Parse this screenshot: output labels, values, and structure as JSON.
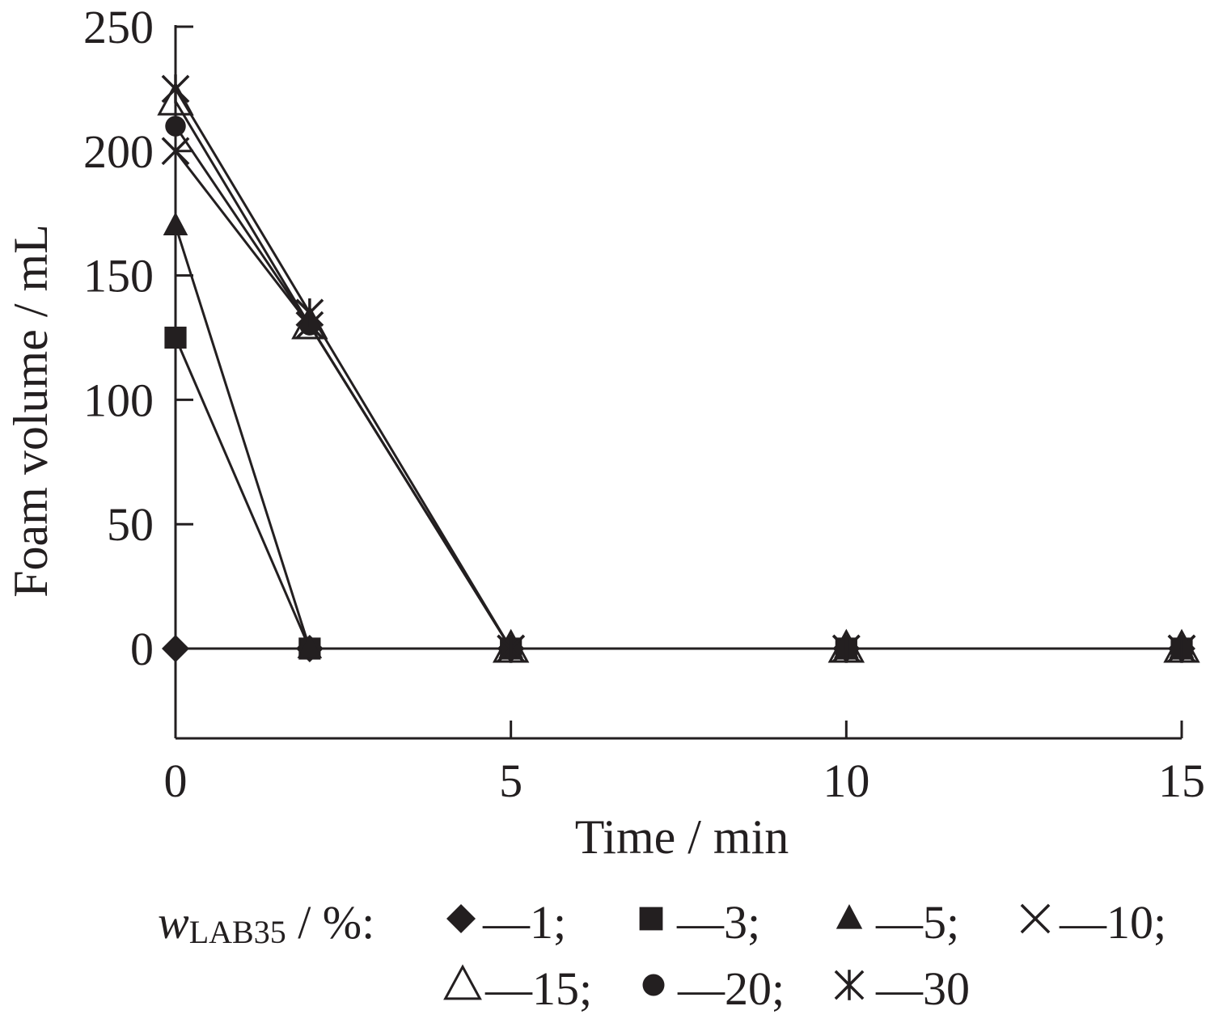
{
  "chart_data": {
    "type": "line",
    "xlabel": "Time / min",
    "ylabel": "Foam volume / mL",
    "xlim": [
      0,
      15
    ],
    "ylim": [
      -37,
      250
    ],
    "x_ticks": [
      "0",
      "5",
      "10",
      "15"
    ],
    "y_ticks": [
      "250",
      "200",
      "150",
      "100",
      "50",
      "0"
    ],
    "grid": false,
    "legend": {
      "position": "bottom",
      "prefix_var": "w",
      "prefix_sub": "LAB35",
      "prefix_unit": " / %:",
      "entries": [
        "—1;",
        "—3;",
        "—5;",
        "—10;",
        "—15;",
        "—20;",
        "—30"
      ]
    },
    "series": [
      {
        "name": "1",
        "marker": "diamond",
        "x": [
          0,
          2,
          5,
          10,
          15
        ],
        "y": [
          0,
          0,
          0,
          0,
          0
        ]
      },
      {
        "name": "3",
        "marker": "square",
        "x": [
          0,
          2,
          5,
          10,
          15
        ],
        "y": [
          125,
          0,
          0,
          0,
          0
        ]
      },
      {
        "name": "5",
        "marker": "triangle",
        "x": [
          0,
          2,
          5,
          10,
          15
        ],
        "y": [
          170,
          0,
          0,
          0,
          0
        ]
      },
      {
        "name": "10",
        "marker": "x",
        "x": [
          0,
          2,
          5,
          10,
          15
        ],
        "y": [
          200,
          130,
          0,
          0,
          0
        ]
      },
      {
        "name": "15",
        "marker": "triangle-open",
        "x": [
          0,
          2,
          5,
          10,
          15
        ],
        "y": [
          220,
          130,
          0,
          0,
          0
        ]
      },
      {
        "name": "20",
        "marker": "circle",
        "x": [
          0,
          2,
          5,
          10,
          15
        ],
        "y": [
          210,
          130,
          0,
          0,
          0
        ]
      },
      {
        "name": "30",
        "marker": "asterisk",
        "x": [
          0,
          2,
          5,
          10,
          15
        ],
        "y": [
          225,
          135,
          0,
          0,
          0
        ]
      }
    ]
  }
}
